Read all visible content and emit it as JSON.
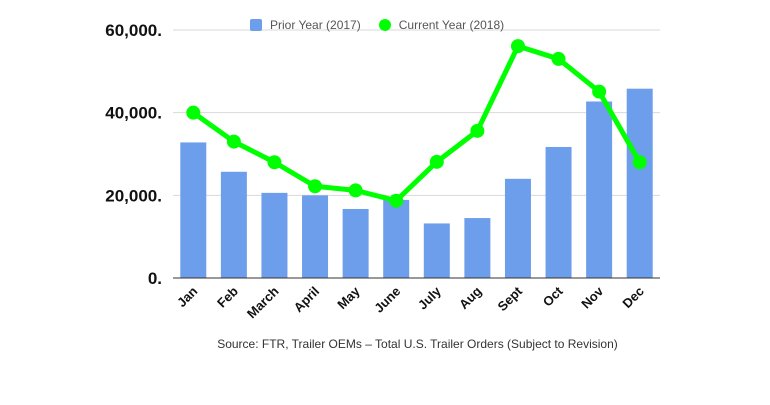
{
  "chart_data": {
    "type": "bar",
    "categories": [
      "Jan",
      "Feb",
      "March",
      "April",
      "May",
      "June",
      "July",
      "Aug",
      "Sept",
      "Oct",
      "Nov",
      "Dec"
    ],
    "series": [
      {
        "name": "Prior Year (2017)",
        "type": "bar",
        "color": "#6d9eeb",
        "values": [
          32800,
          25700,
          20600,
          20000,
          16700,
          18900,
          13200,
          14500,
          24000,
          31700,
          42700,
          45800
        ]
      },
      {
        "name": "Current Year (2018)",
        "type": "line",
        "color": "#00ff00",
        "values": [
          40000,
          33000,
          28000,
          22200,
          21200,
          18700,
          28100,
          35600,
          56100,
          53000,
          45100,
          28000
        ]
      }
    ],
    "ylim": [
      0,
      60000
    ],
    "yticks": [
      {
        "value": 0,
        "label": "0."
      },
      {
        "value": 20000,
        "label": "20,000."
      },
      {
        "value": 40000,
        "label": "40,000."
      },
      {
        "value": 60000,
        "label": "60,000."
      }
    ],
    "grid": true,
    "legend_position": "top",
    "source": "Source: FTR, Trailer OEMs – Total U.S. Trailer Orders (Subject to Revision)"
  }
}
